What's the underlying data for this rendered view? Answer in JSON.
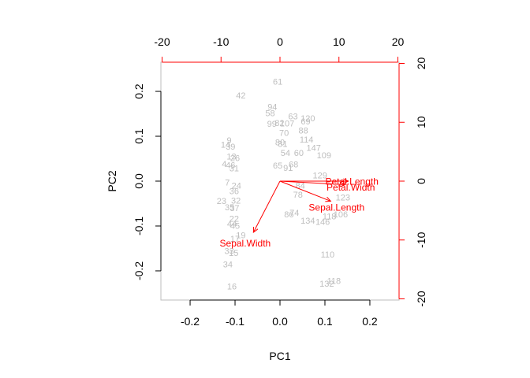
{
  "chart_data": {
    "type": "scatter",
    "subtype": "biplot",
    "xlabel": "PC1",
    "ylabel": "PC2",
    "xlim": [
      -0.265,
      0.265
    ],
    "ylim": [
      -0.265,
      0.265
    ],
    "x_ticks": [
      -0.2,
      -0.1,
      0.0,
      0.1,
      0.2
    ],
    "y_ticks": [
      -0.2,
      -0.1,
      0.0,
      0.1,
      0.2
    ],
    "x_tick_labels": [
      "-0.2",
      "-0.1",
      "0.0",
      "0.1",
      "0.2"
    ],
    "y_tick_labels": [
      "-0.2",
      "-0.1",
      "0.0",
      "0.1",
      "0.2"
    ],
    "top_axis_lim": [
      -20.2,
      20.2
    ],
    "right_axis_lim": [
      -20.2,
      20.2
    ],
    "top_ticks": [
      -20,
      -10,
      0,
      10,
      20
    ],
    "top_tick_labels": [
      "-20",
      "-10",
      "0",
      "10",
      "20"
    ],
    "right_ticks": [
      -20,
      -10,
      0,
      10,
      20
    ],
    "right_tick_labels": [
      "-20",
      "-10",
      "0",
      "10",
      "20"
    ],
    "grid": false,
    "colors": {
      "observations": "#bebebe",
      "loadings": "#ff0000",
      "box": "#bebebe",
      "axes": "#000000"
    },
    "observations": [
      {
        "label": "61",
        "x": -0.005,
        "y": 0.222
      },
      {
        "label": "42",
        "x": -0.087,
        "y": 0.191
      },
      {
        "label": "94",
        "x": -0.017,
        "y": 0.166
      },
      {
        "label": "58",
        "x": -0.022,
        "y": 0.152
      },
      {
        "label": "63",
        "x": 0.029,
        "y": 0.145
      },
      {
        "label": "120",
        "x": 0.062,
        "y": 0.14
      },
      {
        "label": "99",
        "x": -0.018,
        "y": 0.128
      },
      {
        "label": "82",
        "x": -0.001,
        "y": 0.13
      },
      {
        "label": "107",
        "x": 0.016,
        "y": 0.129
      },
      {
        "label": "69",
        "x": 0.057,
        "y": 0.133
      },
      {
        "label": "88",
        "x": 0.052,
        "y": 0.113
      },
      {
        "label": "70",
        "x": 0.009,
        "y": 0.108
      },
      {
        "label": "114",
        "x": 0.059,
        "y": 0.093
      },
      {
        "label": "9",
        "x": -0.113,
        "y": 0.091
      },
      {
        "label": "14",
        "x": -0.121,
        "y": 0.082
      },
      {
        "label": "39",
        "x": -0.11,
        "y": 0.077
      },
      {
        "label": "80",
        "x": 0.0,
        "y": 0.087
      },
      {
        "label": "81",
        "x": 0.006,
        "y": 0.083
      },
      {
        "label": "147",
        "x": 0.075,
        "y": 0.075
      },
      {
        "label": "109",
        "x": 0.098,
        "y": 0.058
      },
      {
        "label": "54",
        "x": 0.012,
        "y": 0.063
      },
      {
        "label": "60",
        "x": 0.042,
        "y": 0.063
      },
      {
        "label": "26",
        "x": -0.1,
        "y": 0.052
      },
      {
        "label": "13",
        "x": -0.108,
        "y": 0.055
      },
      {
        "label": "4",
        "x": -0.124,
        "y": 0.039
      },
      {
        "label": "46",
        "x": -0.11,
        "y": 0.036
      },
      {
        "label": "31",
        "x": -0.102,
        "y": 0.029
      },
      {
        "label": "65",
        "x": -0.005,
        "y": 0.035
      },
      {
        "label": "91",
        "x": 0.018,
        "y": 0.03
      },
      {
        "label": "68",
        "x": 0.03,
        "y": 0.038
      },
      {
        "label": "129",
        "x": 0.089,
        "y": 0.013
      },
      {
        "label": "7",
        "x": -0.117,
        "y": -0.003
      },
      {
        "label": "24",
        "x": -0.097,
        "y": -0.01
      },
      {
        "label": "36",
        "x": -0.102,
        "y": -0.022
      },
      {
        "label": "23",
        "x": -0.13,
        "y": -0.044
      },
      {
        "label": "32",
        "x": -0.098,
        "y": -0.043
      },
      {
        "label": "37",
        "x": -0.101,
        "y": -0.06
      },
      {
        "label": "35",
        "x": -0.112,
        "y": -0.058
      },
      {
        "label": "84",
        "x": 0.045,
        "y": -0.01
      },
      {
        "label": "78",
        "x": 0.04,
        "y": -0.03
      },
      {
        "label": "86",
        "x": 0.02,
        "y": -0.074
      },
      {
        "label": "74",
        "x": 0.032,
        "y": -0.07
      },
      {
        "label": "123",
        "x": 0.14,
        "y": -0.036
      },
      {
        "label": "106",
        "x": 0.135,
        "y": -0.074
      },
      {
        "label": "118",
        "x": 0.11,
        "y": -0.078
      },
      {
        "label": "134",
        "x": 0.062,
        "y": -0.088
      },
      {
        "label": "146",
        "x": 0.095,
        "y": -0.09
      },
      {
        "label": "22",
        "x": -0.102,
        "y": -0.083
      },
      {
        "label": "44",
        "x": -0.107,
        "y": -0.095
      },
      {
        "label": "45",
        "x": -0.1,
        "y": -0.099
      },
      {
        "label": "19",
        "x": -0.087,
        "y": -0.12
      },
      {
        "label": "17",
        "x": -0.1,
        "y": -0.128
      },
      {
        "label": "33",
        "x": -0.113,
        "y": -0.155
      },
      {
        "label": "15",
        "x": -0.103,
        "y": -0.16
      },
      {
        "label": "34",
        "x": -0.116,
        "y": -0.185
      },
      {
        "label": "16",
        "x": -0.107,
        "y": -0.234
      },
      {
        "label": "110",
        "x": 0.106,
        "y": -0.163
      },
      {
        "label": "132",
        "x": 0.104,
        "y": -0.228
      },
      {
        "label": "118",
        "x": 0.12,
        "y": -0.222
      }
    ],
    "loadings": [
      {
        "name": "Petal.Length",
        "x": 11.6,
        "y": 0.0,
        "lx": 12.2,
        "ly": -0.1
      },
      {
        "name": "Petal.Width",
        "x": 11.0,
        "y": -0.6,
        "lx": 12.0,
        "ly": -1.1
      },
      {
        "name": "Sepal.Length",
        "x": 8.6,
        "y": -3.4,
        "lx": 9.6,
        "ly": -4.5
      },
      {
        "name": "Sepal.Width",
        "x": -4.5,
        "y": -8.7,
        "lx": -5.9,
        "ly": -10.6
      }
    ]
  }
}
